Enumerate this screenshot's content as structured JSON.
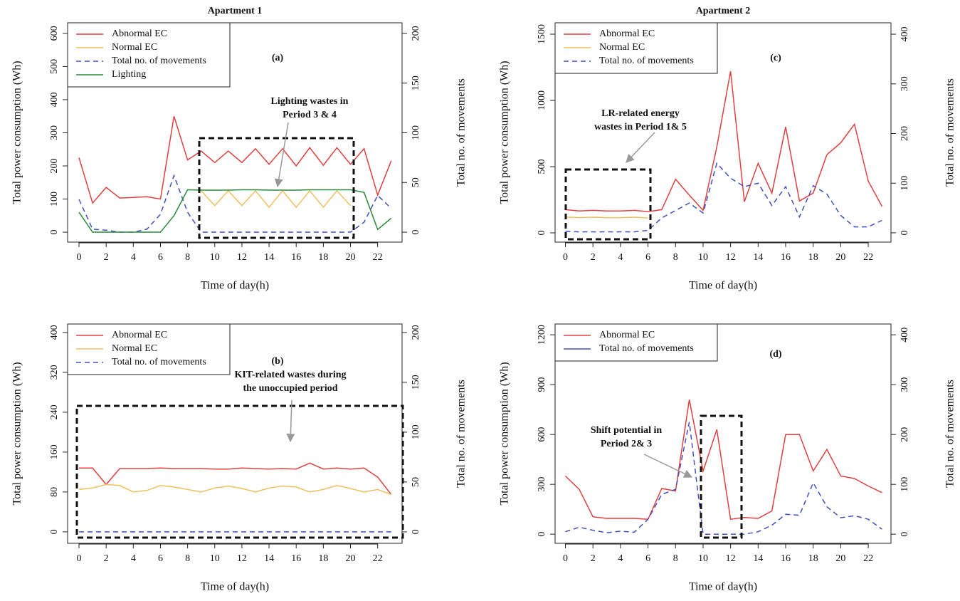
{
  "chart_data": [
    {
      "type": "line",
      "title": "Apartment 1",
      "label": "(a)",
      "annotation": [
        "Lighting wastes in",
        "Period 3 & 4"
      ],
      "xlabel": "Time of day(h)",
      "ylabel": "Total power consumption (Wh)",
      "y2label": "Total no. of movements",
      "x": [
        0,
        1,
        2,
        3,
        4,
        5,
        6,
        7,
        8,
        9,
        10,
        11,
        12,
        13,
        14,
        15,
        16,
        17,
        18,
        19,
        20,
        21,
        22,
        23
      ],
      "xticks": [
        0,
        2,
        4,
        6,
        8,
        10,
        12,
        14,
        16,
        18,
        20,
        22
      ],
      "xlim": [
        -0.84,
        23.8
      ],
      "ylim": [
        -30,
        632
      ],
      "yticks": [
        0,
        100,
        200,
        300,
        400,
        500,
        600
      ],
      "y2lim": [
        -10,
        210.7
      ],
      "y2ticks": [
        0,
        50,
        100,
        150,
        200
      ],
      "series": [
        {
          "name": "Abnormal EC",
          "color": "#e04040",
          "dashed": false,
          "values": [
            225,
            88,
            135,
            103,
            105,
            107,
            100,
            350,
            218,
            245,
            210,
            245,
            210,
            252,
            205,
            252,
            200,
            255,
            202,
            255,
            205,
            252,
            112,
            215
          ]
        },
        {
          "name": "Normal EC",
          "color": "#f0c060",
          "dashed": false,
          "values": [
            null,
            null,
            null,
            null,
            null,
            null,
            null,
            null,
            null,
            125,
            80,
            125,
            80,
            125,
            75,
            125,
            75,
            125,
            75,
            125,
            80,
            null,
            null,
            null
          ]
        },
        {
          "name": "Total no. of movements",
          "color": "#4050c0",
          "dashed": true,
          "axis": "y2",
          "values": [
            33,
            3,
            2,
            0,
            0,
            3,
            18,
            57,
            20,
            0,
            0,
            0,
            0,
            0,
            0,
            0,
            0,
            0,
            0,
            0,
            0,
            10,
            37,
            24
          ]
        },
        {
          "name": "Lighting",
          "color": "#2a8a3a",
          "dashed": false,
          "values": [
            60,
            0,
            0,
            0,
            0,
            0,
            0,
            50,
            128,
            127,
            127,
            127,
            128,
            128,
            127,
            127,
            127,
            128,
            128,
            128,
            128,
            120,
            8,
            42
          ]
        }
      ]
    },
    {
      "type": "line",
      "label": "(b)",
      "annotation": [
        "KIT-related wastes during",
        "the unoccupied period"
      ],
      "xlabel": "Time of day(h)",
      "ylabel": "Total power consumption (Wh)",
      "y2label": "Total no. of movements",
      "x": [
        0,
        1,
        2,
        3,
        4,
        5,
        6,
        7,
        8,
        9,
        10,
        11,
        12,
        13,
        14,
        15,
        16,
        17,
        18,
        19,
        20,
        21,
        22,
        23
      ],
      "xticks": [
        0,
        2,
        4,
        6,
        8,
        10,
        12,
        14,
        16,
        18,
        20,
        22
      ],
      "xlim": [
        -0.84,
        23.8
      ],
      "ylim": [
        -23,
        417
      ],
      "yticks": [
        0,
        80,
        160,
        240,
        320,
        400
      ],
      "y2lim": [
        -11.5,
        208.5
      ],
      "y2ticks": [
        0,
        50,
        100,
        150,
        200
      ],
      "series": [
        {
          "name": "Abnormal EC",
          "color": "#e04040",
          "dashed": false,
          "values": [
            128,
            128,
            95,
            127,
            127,
            127,
            128,
            127,
            127,
            127,
            126,
            126,
            128,
            127,
            126,
            127,
            126,
            138,
            126,
            128,
            126,
            128,
            110,
            75
          ]
        },
        {
          "name": "Normal EC",
          "color": "#f0c060",
          "dashed": false,
          "values": [
            85,
            88,
            95,
            93,
            80,
            83,
            93,
            90,
            85,
            80,
            88,
            92,
            87,
            80,
            88,
            92,
            90,
            80,
            85,
            93,
            87,
            80,
            85,
            75
          ]
        },
        {
          "name": "Total no. of movements",
          "color": "#4050c0",
          "dashed": true,
          "axis": "y2",
          "values": [
            0,
            0,
            0,
            0,
            0,
            0,
            0,
            0,
            0,
            0,
            0,
            0,
            0,
            0,
            0,
            0,
            0,
            0,
            0,
            0,
            0,
            0,
            0,
            0
          ]
        }
      ]
    },
    {
      "type": "line",
      "title": "Apartment 2",
      "label": "(c)",
      "annotation": [
        "LR-related energy",
        "wastes in Period 1& 5"
      ],
      "xlabel": "Time of day(h)",
      "ylabel": "Total power consumption (Wh)",
      "y2label": "Total no. of movements",
      "x": [
        0,
        1,
        2,
        3,
        4,
        5,
        6,
        7,
        8,
        9,
        10,
        11,
        12,
        13,
        14,
        15,
        16,
        17,
        18,
        19,
        20,
        21,
        22,
        23
      ],
      "xticks": [
        0,
        2,
        4,
        6,
        8,
        10,
        12,
        14,
        16,
        18,
        20,
        22
      ],
      "xlim": [
        -0.75,
        23.65
      ],
      "ylim": [
        -70,
        1586
      ],
      "yticks": [
        0,
        500,
        1000,
        1500
      ],
      "y2lim": [
        -18.7,
        423
      ],
      "y2ticks": [
        0,
        100,
        200,
        300,
        400
      ],
      "series": [
        {
          "name": "Abnormal EC",
          "color": "#e04040",
          "dashed": false,
          "values": [
            175,
            165,
            170,
            165,
            165,
            170,
            160,
            175,
            405,
            285,
            170,
            650,
            1220,
            235,
            525,
            300,
            800,
            240,
            300,
            590,
            680,
            820,
            390,
            200
          ]
        },
        {
          "name": "Normal EC",
          "color": "#f0c060",
          "dashed": false,
          "values": [
            120,
            115,
            118,
            115,
            115,
            118,
            112,
            null,
            null,
            null,
            null,
            null,
            null,
            null,
            null,
            null,
            null,
            null,
            null,
            null,
            null,
            null,
            null,
            null
          ]
        },
        {
          "name": "Total no. of movements",
          "color": "#4050c0",
          "dashed": true,
          "axis": "y2",
          "values": [
            3,
            2,
            2,
            2,
            2,
            2,
            5,
            30,
            45,
            60,
            40,
            140,
            110,
            93,
            100,
            55,
            93,
            32,
            95,
            78,
            35,
            12,
            12,
            25
          ]
        }
      ]
    },
    {
      "type": "line",
      "label": "(d)",
      "annotation": [
        "Shift potential in",
        "Period 2& 3"
      ],
      "xlabel": "Time of day(h)",
      "ylabel": "Total power consumption (Wh)",
      "y2label": "Total no. of movements",
      "x": [
        0,
        1,
        2,
        3,
        4,
        5,
        6,
        7,
        8,
        9,
        10,
        11,
        12,
        13,
        14,
        15,
        16,
        17,
        18,
        19,
        20,
        21,
        22,
        23
      ],
      "xticks": [
        0,
        2,
        4,
        6,
        8,
        10,
        12,
        14,
        16,
        18,
        20,
        22
      ],
      "xlim": [
        -0.75,
        23.65
      ],
      "ylim": [
        -55,
        1265
      ],
      "yticks": [
        0,
        300,
        600,
        900,
        1200
      ],
      "y2lim": [
        -18.3,
        421.7
      ],
      "y2ticks": [
        0,
        100,
        200,
        300,
        400
      ],
      "series": [
        {
          "name": "Abnormal EC",
          "color": "#e04040",
          "dashed": false,
          "values": [
            350,
            270,
            105,
            95,
            95,
            95,
            90,
            275,
            260,
            810,
            380,
            630,
            90,
            100,
            95,
            140,
            600,
            600,
            380,
            510,
            350,
            335,
            290,
            250
          ]
        },
        {
          "name": "Total no. of movements",
          "color": "#4050c0",
          "dashed": true,
          "axis": "y2",
          "legend_solid": true,
          "values": [
            5,
            14,
            8,
            3,
            6,
            4,
            30,
            80,
            90,
            225,
            0,
            0,
            0,
            0,
            5,
            18,
            40,
            38,
            103,
            55,
            33,
            37,
            30,
            10
          ]
        }
      ]
    }
  ]
}
